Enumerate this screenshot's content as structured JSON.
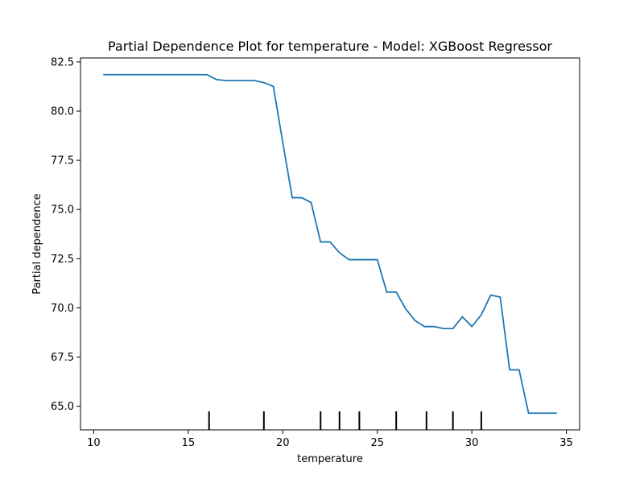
{
  "chart_data": {
    "type": "line",
    "title": "Partial Dependence Plot for temperature - Model: XGBoost Regressor",
    "xlabel": "temperature",
    "ylabel": "Partial dependence",
    "xlim": [
      9.3,
      35.7
    ],
    "ylim": [
      63.8,
      82.7
    ],
    "xticks": [
      10,
      15,
      20,
      25,
      30,
      35
    ],
    "yticks": [
      65.0,
      67.5,
      70.0,
      72.5,
      75.0,
      77.5,
      80.0,
      82.5
    ],
    "xtick_labels": [
      "10",
      "15",
      "20",
      "25",
      "30",
      "35"
    ],
    "ytick_labels": [
      "65.0",
      "67.5",
      "70.0",
      "72.5",
      "75.0",
      "77.5",
      "80.0",
      "82.5"
    ],
    "grid": false,
    "line_color": "#1f77b4",
    "rug_color": "#000000",
    "series": [
      {
        "x": [
          10.5,
          11.0,
          12.0,
          13.0,
          14.0,
          15.0,
          16.0,
          16.5,
          17.0,
          18.0,
          18.5,
          19.0,
          19.5,
          20.0,
          20.5,
          21.0,
          21.5,
          22.0,
          22.5,
          23.0,
          23.5,
          24.0,
          24.5,
          25.0,
          25.5,
          26.0,
          26.5,
          27.0,
          27.5,
          28.0,
          28.5,
          29.0,
          29.5,
          30.0,
          30.5,
          31.0,
          31.5,
          32.0,
          32.5,
          33.0,
          33.5,
          34.0,
          34.5
        ],
        "y": [
          81.85,
          81.85,
          81.85,
          81.85,
          81.85,
          81.85,
          81.85,
          81.6,
          81.55,
          81.55,
          81.55,
          81.45,
          81.25,
          78.4,
          75.6,
          75.6,
          75.35,
          73.35,
          73.35,
          72.8,
          72.45,
          72.45,
          72.45,
          72.45,
          70.8,
          70.8,
          69.95,
          69.35,
          69.05,
          69.05,
          68.95,
          68.95,
          69.55,
          69.05,
          69.65,
          70.65,
          70.55,
          66.85,
          66.85,
          64.65,
          64.65,
          64.65,
          64.65
        ]
      }
    ],
    "rug_x": [
      16.1,
      19.0,
      22.0,
      23.0,
      24.05,
      26.0,
      27.6,
      29.0,
      30.5
    ]
  }
}
